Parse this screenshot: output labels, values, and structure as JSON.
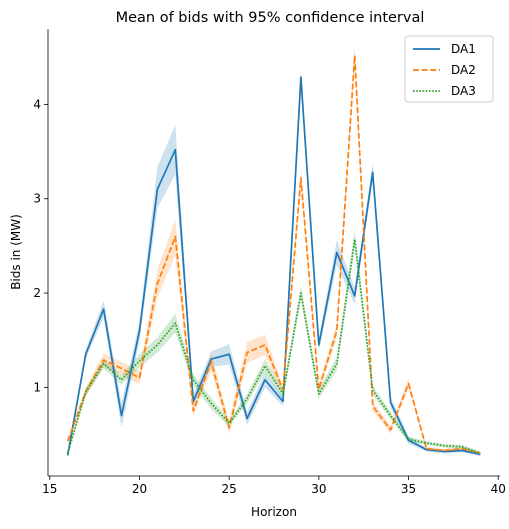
{
  "chart_data": {
    "type": "line",
    "title": "Mean of bids with 95% confidence interval",
    "xlabel": "Horizon",
    "ylabel": "Bids in (MW)",
    "xlim": [
      14.9,
      40.1
    ],
    "ylim": [
      0.06,
      4.8
    ],
    "xticks": [
      15,
      20,
      25,
      30,
      35,
      40
    ],
    "yticks": [
      1,
      2,
      3,
      4
    ],
    "grid": false,
    "legend_position": "top-right",
    "x": [
      16,
      17,
      18,
      19,
      20,
      21,
      22,
      23,
      24,
      25,
      26,
      27,
      28,
      29,
      30,
      31,
      32,
      33,
      34,
      35,
      36,
      37,
      38,
      39
    ],
    "series": [
      {
        "name": "DA1",
        "color": "#1f77b4",
        "style": "solid",
        "values": [
          0.28,
          1.35,
          1.83,
          0.7,
          1.6,
          3.1,
          3.52,
          0.85,
          1.3,
          1.35,
          0.67,
          1.08,
          0.85,
          4.29,
          1.45,
          2.43,
          1.97,
          3.28,
          0.84,
          0.44,
          0.34,
          0.32,
          0.33,
          0.29
        ],
        "ci_lower": [
          0.26,
          1.3,
          1.74,
          0.57,
          1.5,
          2.9,
          3.26,
          0.8,
          1.22,
          1.24,
          0.6,
          1.0,
          0.8,
          4.22,
          1.38,
          2.3,
          1.88,
          3.18,
          0.78,
          0.4,
          0.32,
          0.3,
          0.31,
          0.27
        ],
        "ci_upper": [
          0.3,
          1.4,
          1.92,
          0.83,
          1.7,
          3.34,
          3.78,
          0.92,
          1.38,
          1.46,
          0.74,
          1.16,
          0.9,
          4.36,
          1.52,
          2.56,
          2.06,
          3.38,
          0.9,
          0.48,
          0.36,
          0.34,
          0.35,
          0.31
        ]
      },
      {
        "name": "DA2",
        "color": "#ff7f0e",
        "style": "dashed",
        "values": [
          0.43,
          0.95,
          1.29,
          1.2,
          1.1,
          2.1,
          2.6,
          0.75,
          1.27,
          0.57,
          1.37,
          1.45,
          0.97,
          3.22,
          0.98,
          1.6,
          4.52,
          0.8,
          0.55,
          1.04,
          0.35,
          0.33,
          0.35,
          0.3
        ],
        "ci_lower": [
          0.4,
          0.9,
          1.22,
          1.13,
          1.03,
          1.95,
          2.4,
          0.7,
          1.18,
          0.51,
          1.26,
          1.34,
          0.92,
          3.12,
          0.93,
          1.52,
          4.42,
          0.75,
          0.51,
          0.99,
          0.33,
          0.31,
          0.33,
          0.28
        ],
        "ci_upper": [
          0.46,
          1.0,
          1.36,
          1.27,
          1.17,
          2.25,
          2.78,
          0.8,
          1.36,
          0.64,
          1.48,
          1.56,
          1.02,
          3.32,
          1.03,
          1.68,
          4.62,
          0.85,
          0.59,
          1.09,
          0.37,
          0.35,
          0.37,
          0.32
        ]
      },
      {
        "name": "DA3",
        "color": "#2ca02c",
        "style": "dotted",
        "values": [
          0.3,
          0.95,
          1.25,
          1.08,
          1.28,
          1.45,
          1.68,
          1.08,
          0.83,
          0.62,
          0.88,
          1.23,
          0.93,
          2.0,
          0.93,
          1.25,
          2.57,
          0.97,
          0.7,
          0.45,
          0.41,
          0.38,
          0.37,
          0.3
        ],
        "ci_lower": [
          0.28,
          0.91,
          1.2,
          1.03,
          1.21,
          1.37,
          1.58,
          1.02,
          0.77,
          0.58,
          0.83,
          1.16,
          0.88,
          1.92,
          0.88,
          1.18,
          2.47,
          0.92,
          0.66,
          0.42,
          0.39,
          0.36,
          0.35,
          0.28
        ],
        "ci_upper": [
          0.32,
          0.99,
          1.3,
          1.13,
          1.35,
          1.53,
          1.78,
          1.14,
          0.89,
          0.66,
          0.93,
          1.3,
          0.98,
          2.08,
          0.98,
          1.32,
          2.67,
          1.02,
          0.74,
          0.48,
          0.43,
          0.4,
          0.39,
          0.32
        ]
      }
    ]
  }
}
